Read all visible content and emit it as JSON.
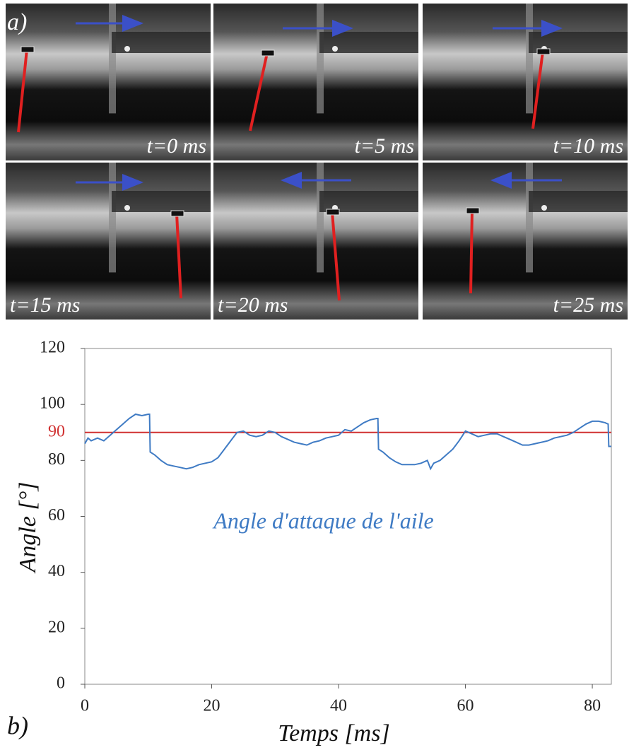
{
  "panel_a_label": "a)",
  "frames": [
    {
      "label": "t=0 ms"
    },
    {
      "label": "t=5 ms"
    },
    {
      "label": "t=10 ms"
    },
    {
      "label": "t=15 ms"
    },
    {
      "label": "t=20 ms"
    },
    {
      "label": "t=25 ms"
    }
  ],
  "panel_b_label": "b)",
  "chart_data": {
    "type": "line",
    "x_label": "Temps [ms]",
    "y_label": "Angle  [°]",
    "annotation": "Angle d'attaque de l'aile",
    "reference_line": {
      "value": 90,
      "label": "90",
      "color": "#d03030"
    },
    "xlim": [
      0,
      83
    ],
    "ylim": [
      0,
      120
    ],
    "xticks": [
      0,
      20,
      40,
      60,
      80
    ],
    "yticks": [
      0,
      20,
      40,
      60,
      80,
      100,
      120
    ],
    "series": [
      {
        "color": "#3f7bc4",
        "x": [
          0,
          0.5,
          1,
          2,
          3,
          4,
          5,
          6,
          7,
          8,
          9,
          10,
          10.2,
          10.3,
          11,
          12,
          13,
          14,
          15,
          16,
          17,
          18,
          19,
          20,
          21,
          22,
          23,
          24,
          25,
          26,
          27,
          28,
          29,
          30,
          31,
          32,
          33,
          34,
          35,
          36,
          37,
          38,
          39,
          40,
          41,
          42,
          43,
          44,
          45,
          46,
          46.2,
          46.3,
          47,
          48,
          49,
          50,
          51,
          52,
          53,
          54,
          54.5,
          55,
          56,
          57,
          58,
          59,
          60,
          61,
          62,
          63,
          64,
          65,
          66,
          67,
          68,
          69,
          70,
          71,
          72,
          73,
          74,
          75,
          76,
          77,
          78,
          79,
          80,
          81,
          82,
          82.5,
          82.6,
          83
        ],
        "values": [
          86,
          88,
          87,
          88,
          87,
          89,
          91,
          93,
          95,
          96.5,
          96,
          96.5,
          96.5,
          83,
          82,
          80,
          78.5,
          78,
          77.5,
          77,
          77.5,
          78.5,
          79,
          79.5,
          81,
          84,
          87,
          90,
          90.5,
          89,
          88.5,
          89,
          90.5,
          90,
          88.5,
          87.5,
          86.5,
          86,
          85.5,
          86.5,
          87,
          88,
          88.5,
          89,
          91,
          90.5,
          92,
          93.5,
          94.5,
          95,
          95,
          84,
          83,
          81,
          79.5,
          78.5,
          78.5,
          78.5,
          79,
          80,
          77,
          79,
          80,
          82,
          84,
          87,
          90.5,
          89.5,
          88.5,
          89,
          89.5,
          89.5,
          88.5,
          87.5,
          86.5,
          85.5,
          85.5,
          86,
          86.5,
          87,
          88,
          88.5,
          89,
          90,
          91.5,
          93,
          94,
          94,
          93.5,
          93,
          85,
          85
        ]
      }
    ]
  }
}
